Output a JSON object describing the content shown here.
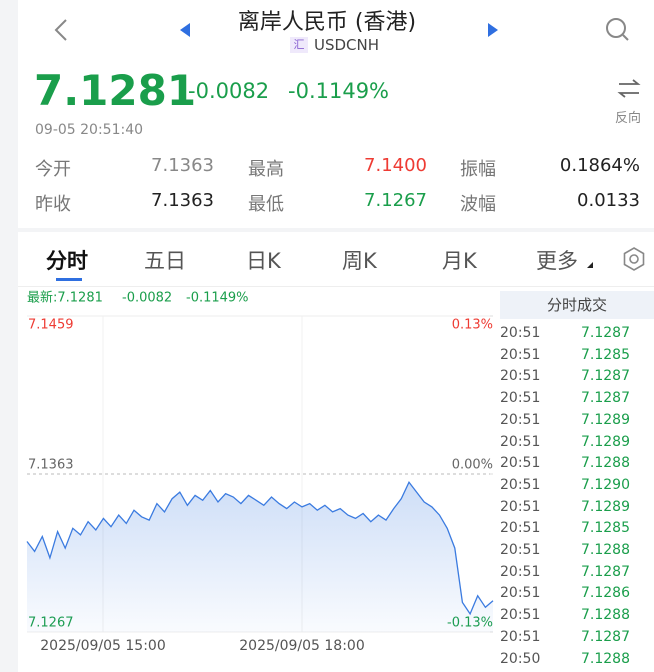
{
  "header": {
    "title": "离岸人民币 (香港)",
    "badge": "汇",
    "code": "USDCNH"
  },
  "quote": {
    "price": "7.1281",
    "change": "-0.0082",
    "change_pct": "-0.1149%",
    "time": "09-05 20:51:40",
    "switch_label": "反向"
  },
  "stats": [
    [
      {
        "label": "今开",
        "value": "7.1363"
      },
      {
        "label": "最高",
        "value": "7.1400"
      },
      {
        "label": "振幅",
        "value": "0.1864%"
      }
    ],
    [
      {
        "label": "昨收",
        "value": "7.1363"
      },
      {
        "label": "最低",
        "value": "7.1267"
      },
      {
        "label": "波幅",
        "value": "0.0133"
      }
    ]
  ],
  "tabs": [
    "分时",
    "五日",
    "日K",
    "周K",
    "月K",
    "更多"
  ],
  "chart_data": {
    "type": "line",
    "legend": {
      "latest": "最新:7.1281",
      "change": "-0.0082",
      "change_pct": "-0.1149%"
    },
    "x_labels": [
      "2025/09/05 15:00",
      "2025/09/05 18:00"
    ],
    "ylim": [
      7.1267,
      7.1459
    ],
    "yticks": [
      7.1459,
      7.1363,
      7.1267
    ],
    "y2lim": [
      -0.13,
      0.13
    ],
    "y2ticks": [
      {
        "value": 0.13,
        "label": "0.13%"
      },
      {
        "value": 0,
        "label": "0.00%"
      },
      {
        "value": -0.13,
        "label": "-0.13%"
      }
    ],
    "color": "#3b7be0",
    "values": [
      7.1322,
      7.1316,
      7.1325,
      7.1312,
      7.1328,
      7.1318,
      7.133,
      7.1326,
      7.1334,
      7.1329,
      7.1336,
      7.1331,
      7.1338,
      7.1333,
      7.1341,
      7.1337,
      7.1335,
      7.1345,
      7.134,
      7.1348,
      7.1352,
      7.1344,
      7.135,
      7.1347,
      7.1353,
      7.1346,
      7.1351,
      7.1349,
      7.1345,
      7.135,
      7.1347,
      7.1344,
      7.1349,
      7.1345,
      7.1342,
      7.1346,
      7.1343,
      7.1345,
      7.1341,
      7.1344,
      7.134,
      7.1342,
      7.1338,
      7.1336,
      7.1339,
      7.1334,
      7.1338,
      7.1335,
      7.1342,
      7.1348,
      7.1358,
      7.1352,
      7.1346,
      7.1343,
      7.1338,
      7.133,
      7.1318,
      7.1285,
      7.1278,
      7.1289,
      7.1282,
      7.1286
    ]
  },
  "trades": {
    "title": "分时成交",
    "rows": [
      [
        "20:51",
        "7.1287"
      ],
      [
        "20:51",
        "7.1285"
      ],
      [
        "20:51",
        "7.1287"
      ],
      [
        "20:51",
        "7.1287"
      ],
      [
        "20:51",
        "7.1289"
      ],
      [
        "20:51",
        "7.1289"
      ],
      [
        "20:51",
        "7.1288"
      ],
      [
        "20:51",
        "7.1290"
      ],
      [
        "20:51",
        "7.1289"
      ],
      [
        "20:51",
        "7.1285"
      ],
      [
        "20:51",
        "7.1288"
      ],
      [
        "20:51",
        "7.1287"
      ],
      [
        "20:51",
        "7.1286"
      ],
      [
        "20:51",
        "7.1288"
      ],
      [
        "20:51",
        "7.1287"
      ],
      [
        "20:50",
        "7.1288"
      ]
    ]
  }
}
